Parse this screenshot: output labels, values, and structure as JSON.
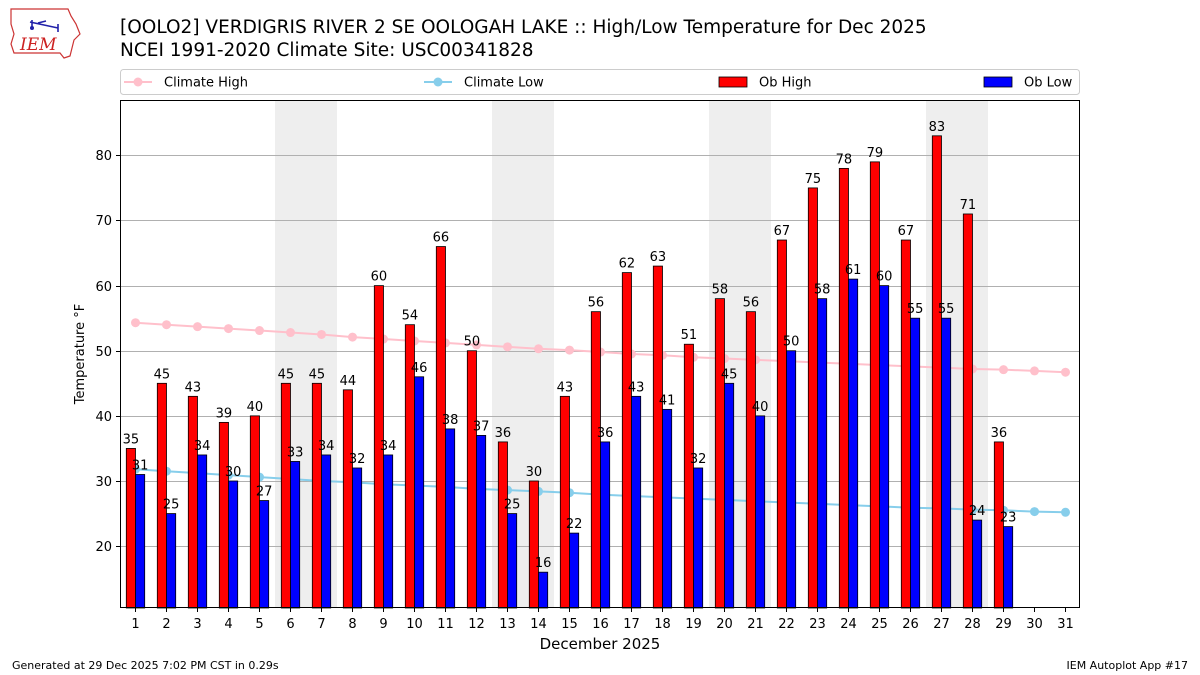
{
  "header": {
    "logo_text": "IEM",
    "title_line1": "[OOLO2] VERDIGRIS RIVER 2 SE OOLOGAH LAKE :: High/Low Temperature for Dec 2025",
    "title_line2": "NCEI 1991-2020 Climate Site: USC00341828"
  },
  "footer": {
    "left": "Generated at 29 Dec 2025 7:02 PM CST in 0.29s",
    "right": "IEM Autoplot App #17"
  },
  "colors": {
    "ob_high": "#ff0000",
    "ob_low": "#0000ff",
    "climate_high": "#ffc0cb",
    "climate_low": "#87ceeb",
    "weekend_shade": "#eeeeee",
    "grid": "#b0b0b0"
  },
  "chart_data": {
    "type": "bar",
    "xlabel": "December 2025",
    "ylabel": "Temperature °F",
    "ylim": [
      10.5,
      88.5
    ],
    "yticks": [
      20,
      30,
      40,
      50,
      60,
      70,
      80
    ],
    "grid": "horizontal",
    "legend_placement": "top, above plot",
    "categories": [
      "1",
      "2",
      "3",
      "4",
      "5",
      "6",
      "7",
      "8",
      "9",
      "10",
      "11",
      "12",
      "13",
      "14",
      "15",
      "16",
      "17",
      "18",
      "19",
      "20",
      "21",
      "22",
      "23",
      "24",
      "25",
      "26",
      "27",
      "28",
      "29",
      "30",
      "31"
    ],
    "shaded_days": [
      6,
      7,
      13,
      14,
      20,
      21,
      27,
      28
    ],
    "series": [
      {
        "name": "Ob High",
        "kind": "bar",
        "values": [
          35,
          45,
          43,
          39,
          40,
          45,
          45,
          44,
          60,
          54,
          66,
          50,
          36,
          30,
          43,
          56,
          62,
          63,
          51,
          58,
          56,
          67,
          75,
          78,
          79,
          67,
          83,
          71,
          36,
          null,
          null
        ]
      },
      {
        "name": "Ob Low",
        "kind": "bar",
        "values": [
          31,
          25,
          34,
          30,
          27,
          33,
          34,
          32,
          34,
          46,
          38,
          37,
          25,
          16,
          22,
          36,
          43,
          41,
          32,
          45,
          40,
          50,
          58,
          61,
          60,
          55,
          55,
          24,
          23,
          null,
          null
        ]
      },
      {
        "name": "Climate High",
        "kind": "line",
        "values": [
          54.3,
          54.0,
          53.7,
          53.4,
          53.1,
          52.8,
          52.5,
          52.1,
          51.8,
          51.5,
          51.2,
          50.9,
          50.6,
          50.3,
          50.1,
          49.8,
          49.5,
          49.3,
          49.0,
          48.8,
          48.6,
          48.4,
          48.2,
          48.0,
          47.8,
          47.6,
          47.4,
          47.2,
          47.1,
          46.9,
          46.7
        ]
      },
      {
        "name": "Climate Low",
        "kind": "line",
        "values": [
          31.8,
          31.5,
          31.2,
          30.9,
          30.6,
          30.3,
          30.0,
          29.8,
          29.5,
          29.3,
          29.1,
          28.8,
          28.6,
          28.4,
          28.2,
          27.9,
          27.7,
          27.5,
          27.3,
          27.1,
          26.9,
          26.7,
          26.5,
          26.3,
          26.1,
          25.9,
          25.8,
          25.6,
          25.5,
          25.3,
          25.2
        ]
      }
    ]
  }
}
